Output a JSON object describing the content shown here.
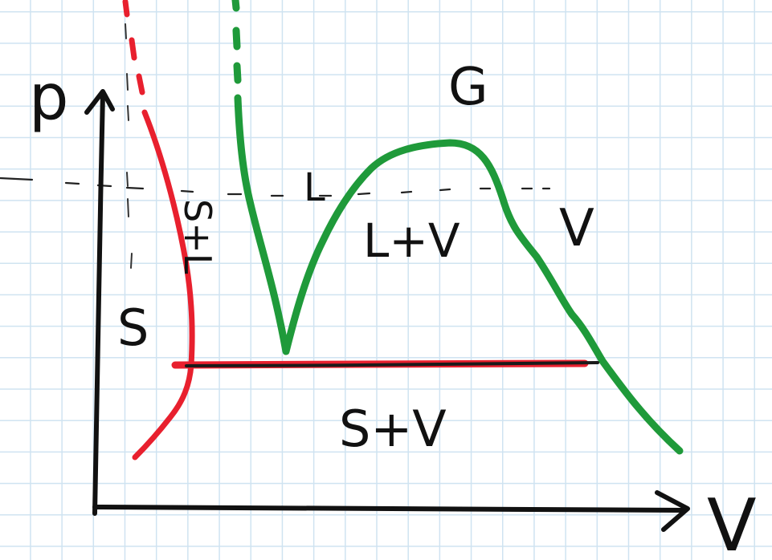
{
  "diagram": {
    "axes": {
      "y_label": "p",
      "x_label": "V"
    },
    "regions": {
      "solid": "S",
      "solid_liquid": "S+L",
      "liquid": "L",
      "gas": "G",
      "liquid_vapor": "L+V",
      "vapor": "V",
      "solid_vapor": "S+V"
    },
    "colors": {
      "axes": "#111111",
      "solid_boundary": "#e8202e",
      "liquid_vapor_boundary": "#1f9a3a",
      "triple_line": "#d42a2a",
      "grid": "#cfe3f1"
    }
  }
}
